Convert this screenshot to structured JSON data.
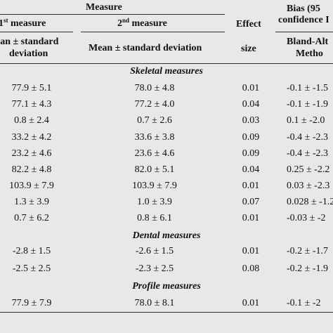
{
  "header": {
    "measure": "Measure",
    "first_measure_prefix": "1",
    "first_measure_sup": "st",
    "first_measure_suffix": " measure",
    "second_measure_prefix": "2",
    "second_measure_sup": "nd",
    "second_measure_suffix": " measure",
    "effect": "Effect",
    "bias": "Bias (95",
    "confidence": "confidence I",
    "mean_sd_1_line1": "ean ± standard",
    "mean_sd_1_line2": "deviation",
    "mean_sd_2": "Mean ± standard deviation",
    "size": "size",
    "bland_altman": "Bland-Alt",
    "method": "Metho"
  },
  "sections": {
    "skeletal": "Skeletal measures",
    "dental": "Dental measures",
    "profile": "Profile measures"
  },
  "skeletal_rows": [
    {
      "m1": "77.9 ± 5.1",
      "m2": "78.0 ± 4.8",
      "effect": "0.01",
      "bias": "-0.1 ± -1.5"
    },
    {
      "m1": "77.1 ± 4.3",
      "m2": "77.2 ± 4.0",
      "effect": "0.04",
      "bias": "-0.1 ± -1.9"
    },
    {
      "m1": "0.8 ± 2.4",
      "m2": "0.7 ± 2.6",
      "effect": "0.03",
      "bias": "0.1 ± -2.0"
    },
    {
      "m1": "33.2 ± 4.2",
      "m2": "33.6 ± 3.8",
      "effect": "0.09",
      "bias": "-0.4 ± -2.3"
    },
    {
      "m1": "23.2 ± 4.6",
      "m2": "23.6 ± 4.6",
      "effect": "0.09",
      "bias": "-0.4 ± -2.3"
    },
    {
      "m1": "82.2 ± 4.8",
      "m2": "82.0 ± 5.1",
      "effect": "0.04",
      "bias": "0.25 ± -2.2"
    },
    {
      "m1": "103.9 ± 7.9",
      "m2": "103.9 ± 7.9",
      "effect": "0.01",
      "bias": "0.03 ± -2.3"
    },
    {
      "m1": "1.3 ± 3.9",
      "m2": "1.0 ± 3.9",
      "effect": "0.07",
      "bias": "0.028 ± -1.2"
    },
    {
      "m1": "0.7 ± 6.2",
      "m2": "0.8 ± 6.1",
      "effect": "0.01",
      "bias": "-0.03 ± -2"
    }
  ],
  "dental_rows": [
    {
      "m1": "-2.8 ± 1.5",
      "m2": "-2.6 ± 1.5",
      "effect": "0.01",
      "bias": "-0.2 ± -1.7"
    },
    {
      "m1": "-2.5 ± 2.5",
      "m2": "-2.3 ± 2.5",
      "effect": "0.08",
      "bias": "-0.2 ± -1.9"
    }
  ],
  "profile_rows": [
    {
      "m1": "77.9 ± 7.9",
      "m2": "78.0 ± 8.1",
      "effect": "0.01",
      "bias": "-0.1 ± -2"
    }
  ]
}
